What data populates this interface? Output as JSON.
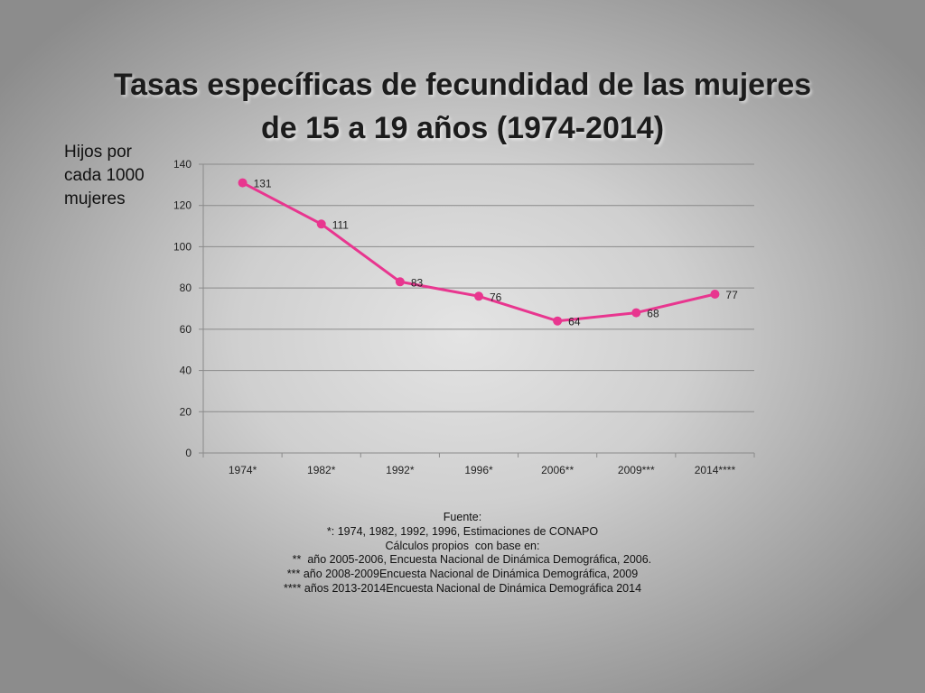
{
  "title_lines": [
    "Tasas específicas de fecundidad de las mujeres",
    "de 15 a 19 años (1974-2014)"
  ],
  "ylabel_lines": [
    "Hijos por",
    "cada 1000",
    "mujeres"
  ],
  "chart_data": {
    "type": "line",
    "title": "Tasas específicas de fecundidad de las mujeres de 15 a 19 años (1974-2014)",
    "ylabel": "Hijos por cada 1000 mujeres",
    "xlabel": "",
    "categories": [
      "1974*",
      "1982*",
      "1992*",
      "1996*",
      "2006**",
      "2009***",
      "2014****"
    ],
    "series": [
      {
        "values": [
          131,
          111,
          83,
          76,
          64,
          68,
          77
        ]
      }
    ],
    "ylim": [
      0,
      140
    ],
    "yticks": [
      "0",
      "20",
      "40",
      "60",
      "80",
      "100",
      "120",
      "140"
    ],
    "grid": true,
    "legend": "none",
    "data_labels": true,
    "line_color": "#e8368f"
  },
  "source_lines": [
    "Fuente:",
    "*: 1974, 1982, 1992, 1996, Estimaciones de CONAPO",
    "Cálculos propios  con base en:",
    "      **  año 2005-2006, Encuesta Nacional de Dinámica Demográfica, 2006.",
    "*** año 2008-2009Encuesta Nacional de Dinámica Demográfica, 2009",
    "**** años 2013-2014Encuesta Nacional de Dinámica Demográfica 2014"
  ]
}
